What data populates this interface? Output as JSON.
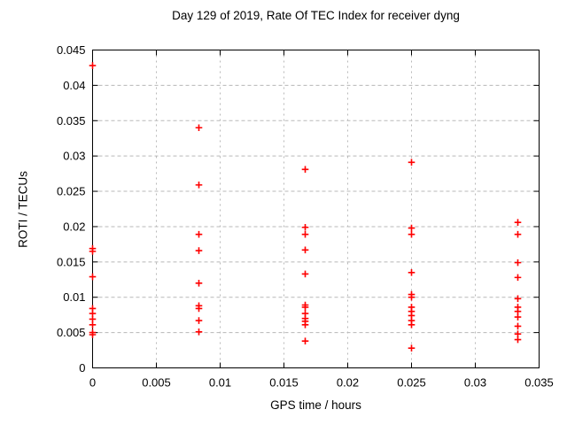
{
  "chart_data": {
    "type": "scatter",
    "title": "Day 129 of 2019, Rate Of TEC Index for receiver dyng",
    "xlabel": "GPS time / hours",
    "ylabel": "ROTI / TECUs",
    "xlim": [
      0,
      0.035
    ],
    "ylim": [
      0,
      0.045
    ],
    "grid": true,
    "legend": "none",
    "marker": "plus",
    "marker_color": "#ff0000",
    "grid_color": "#b8b8b8",
    "axis_color": "#000000",
    "xticks": [
      {
        "v": 0,
        "label": "0"
      },
      {
        "v": 0.005,
        "label": "0.005"
      },
      {
        "v": 0.01,
        "label": "0.01"
      },
      {
        "v": 0.015,
        "label": "0.015"
      },
      {
        "v": 0.02,
        "label": "0.02"
      },
      {
        "v": 0.025,
        "label": "0.025"
      },
      {
        "v": 0.03,
        "label": "0.03"
      },
      {
        "v": 0.035,
        "label": "0.035"
      }
    ],
    "yticks": [
      {
        "v": 0,
        "label": "0"
      },
      {
        "v": 0.005,
        "label": "0.005"
      },
      {
        "v": 0.01,
        "label": "0.01"
      },
      {
        "v": 0.015,
        "label": "0.015"
      },
      {
        "v": 0.02,
        "label": "0.02"
      },
      {
        "v": 0.025,
        "label": "0.025"
      },
      {
        "v": 0.03,
        "label": "0.03"
      },
      {
        "v": 0.035,
        "label": "0.035"
      },
      {
        "v": 0.04,
        "label": "0.04"
      },
      {
        "v": 0.045,
        "label": "0.045"
      }
    ],
    "series": [
      {
        "name": "ROTI",
        "points": [
          [
            0,
            0.0428
          ],
          [
            0,
            0.0169
          ],
          [
            0,
            0.0165
          ],
          [
            0,
            0.0129
          ],
          [
            0,
            0.0084
          ],
          [
            0,
            0.0077
          ],
          [
            0,
            0.0069
          ],
          [
            0,
            0.0061
          ],
          [
            0,
            0.005
          ],
          [
            0,
            0.0047
          ],
          [
            0.008333,
            0.034
          ],
          [
            0.008333,
            0.0259
          ],
          [
            0.008333,
            0.0189
          ],
          [
            0.008333,
            0.0166
          ],
          [
            0.008333,
            0.012
          ],
          [
            0.008333,
            0.0088
          ],
          [
            0.008333,
            0.0084
          ],
          [
            0.008333,
            0.0067
          ],
          [
            0.008333,
            0.0051
          ],
          [
            0.016667,
            0.0281
          ],
          [
            0.016667,
            0.0199
          ],
          [
            0.016667,
            0.0189
          ],
          [
            0.016667,
            0.0167
          ],
          [
            0.016667,
            0.0133
          ],
          [
            0.016667,
            0.0089
          ],
          [
            0.016667,
            0.0086
          ],
          [
            0.016667,
            0.0077
          ],
          [
            0.016667,
            0.007
          ],
          [
            0.016667,
            0.0066
          ],
          [
            0.016667,
            0.0061
          ],
          [
            0.016667,
            0.0038
          ],
          [
            0.025,
            0.0291
          ],
          [
            0.025,
            0.0198
          ],
          [
            0.025,
            0.0189
          ],
          [
            0.025,
            0.0135
          ],
          [
            0.025,
            0.0104
          ],
          [
            0.025,
            0.01
          ],
          [
            0.025,
            0.0086
          ],
          [
            0.025,
            0.008
          ],
          [
            0.025,
            0.0074
          ],
          [
            0.025,
            0.0067
          ],
          [
            0.025,
            0.0061
          ],
          [
            0.025,
            0.0028
          ],
          [
            0.033333,
            0.0206
          ],
          [
            0.033333,
            0.0189
          ],
          [
            0.033333,
            0.0149
          ],
          [
            0.033333,
            0.0128
          ],
          [
            0.033333,
            0.0098
          ],
          [
            0.033333,
            0.0086
          ],
          [
            0.033333,
            0.008
          ],
          [
            0.033333,
            0.0072
          ],
          [
            0.033333,
            0.0059
          ],
          [
            0.033333,
            0.0048
          ],
          [
            0.033333,
            0.004
          ]
        ]
      }
    ]
  }
}
